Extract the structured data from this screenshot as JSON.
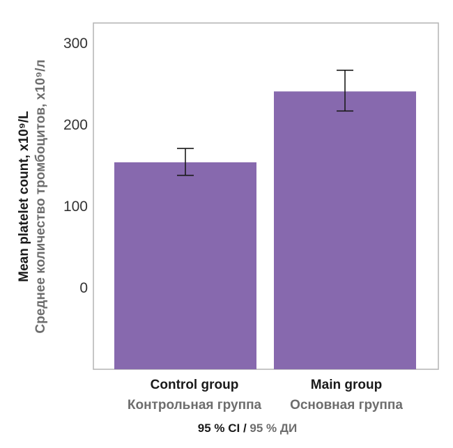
{
  "chart_data": {
    "type": "bar",
    "categories": [
      "Control group",
      "Main group"
    ],
    "categories_ru": [
      "Контрольная группа",
      "Основная группа"
    ],
    "values": [
      154,
      241
    ],
    "ci_lower": [
      138,
      217
    ],
    "ci_upper": [
      171,
      267
    ],
    "ylim": [
      -100,
      325
    ],
    "yticks": [
      0,
      100,
      200,
      300
    ],
    "ylabel": "Mean platelet count, x10⁹/L",
    "ylabel_ru": "Среднее количество тромбоцитов, x10⁹/л",
    "xlabel": "95 % CI",
    "xlabel_ru": "95 % ДИ",
    "xlabel_sep": " / ",
    "bar_color": "#8769ae",
    "grid": false,
    "legend": "none"
  }
}
